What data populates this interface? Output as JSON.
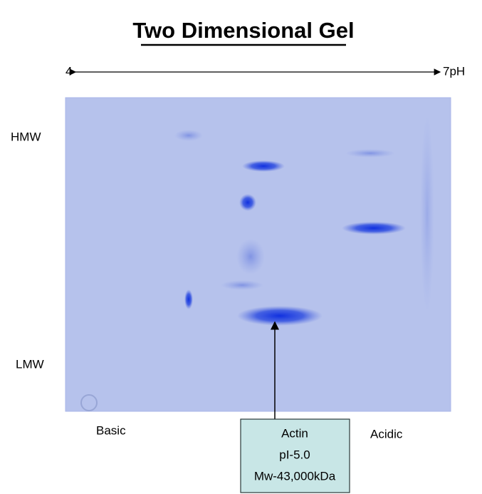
{
  "title": "Two Dimensional Gel",
  "ph_axis": {
    "start": "4",
    "end": "7pH"
  },
  "labels": {
    "hmw": "HMW",
    "lmw": "LMW",
    "basic": "Basic",
    "acidic": "Acidic"
  },
  "callout": {
    "lines": [
      "Actin",
      "pI-5.0",
      "Mw-43,000kDa"
    ]
  }
}
